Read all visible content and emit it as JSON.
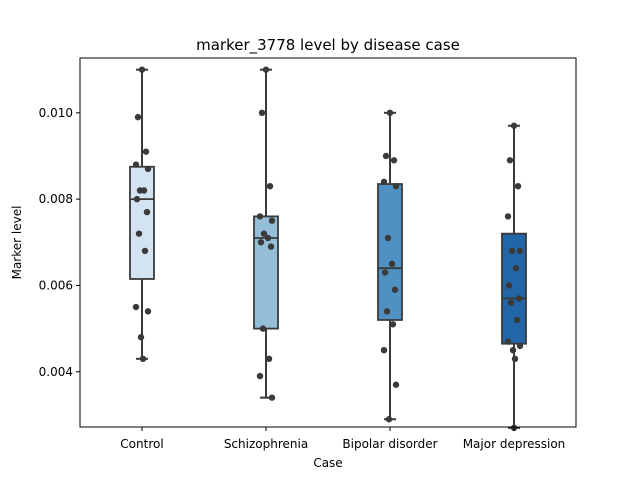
{
  "chart_data": {
    "type": "box",
    "title": "marker_3778 level by disease case",
    "xlabel": "Case",
    "ylabel": "Marker level",
    "ylim": [
      0.00272,
      0.01127
    ],
    "yticks": [
      "0.004",
      "0.006",
      "0.008",
      "0.010"
    ],
    "ytick_values": [
      0.004,
      0.006,
      0.008,
      0.01
    ],
    "grid": false,
    "legend": "none",
    "categories": [
      "Control",
      "Schizophrenia",
      "Bipolar disorder",
      "Major depression"
    ],
    "colors": [
      "#d3e3f2",
      "#95bed9",
      "#4e91c2",
      "#2266a8"
    ],
    "boxes": [
      {
        "whisker_low": 0.0043,
        "q1": 0.00615,
        "median": 0.008,
        "q3": 0.00875,
        "whisker_high": 0.011
      },
      {
        "whisker_low": 0.0034,
        "q1": 0.005,
        "median": 0.0071,
        "q3": 0.0076,
        "whisker_high": 0.011
      },
      {
        "whisker_low": 0.0029,
        "q1": 0.0052,
        "median": 0.0064,
        "q3": 0.00835,
        "whisker_high": 0.01
      },
      {
        "whisker_low": 0.0027,
        "q1": 0.00465,
        "median": 0.0057,
        "q3": 0.0072,
        "whisker_high": 0.0097
      }
    ],
    "points": [
      {
        "category": "Control",
        "values": [
          0.011,
          0.0099,
          0.0091,
          0.0088,
          0.0087,
          0.0082,
          0.0082,
          0.008,
          0.0077,
          0.0072,
          0.0068,
          0.0055,
          0.0054,
          0.0048,
          0.0043
        ]
      },
      {
        "category": "Schizophrenia",
        "values": [
          0.011,
          0.01,
          0.0083,
          0.0076,
          0.0075,
          0.0072,
          0.0071,
          0.007,
          0.0069,
          0.005,
          0.0043,
          0.0039,
          0.0034
        ]
      },
      {
        "category": "Bipolar disorder",
        "values": [
          0.01,
          0.009,
          0.0089,
          0.0084,
          0.0083,
          0.0071,
          0.0065,
          0.0063,
          0.0059,
          0.0054,
          0.0051,
          0.0045,
          0.0037,
          0.0029
        ]
      },
      {
        "category": "Major depression",
        "values": [
          0.0097,
          0.0089,
          0.0083,
          0.0076,
          0.0068,
          0.0068,
          0.0064,
          0.006,
          0.0057,
          0.0056,
          0.0052,
          0.0047,
          0.0046,
          0.0045,
          0.0043,
          0.0027
        ]
      }
    ]
  }
}
